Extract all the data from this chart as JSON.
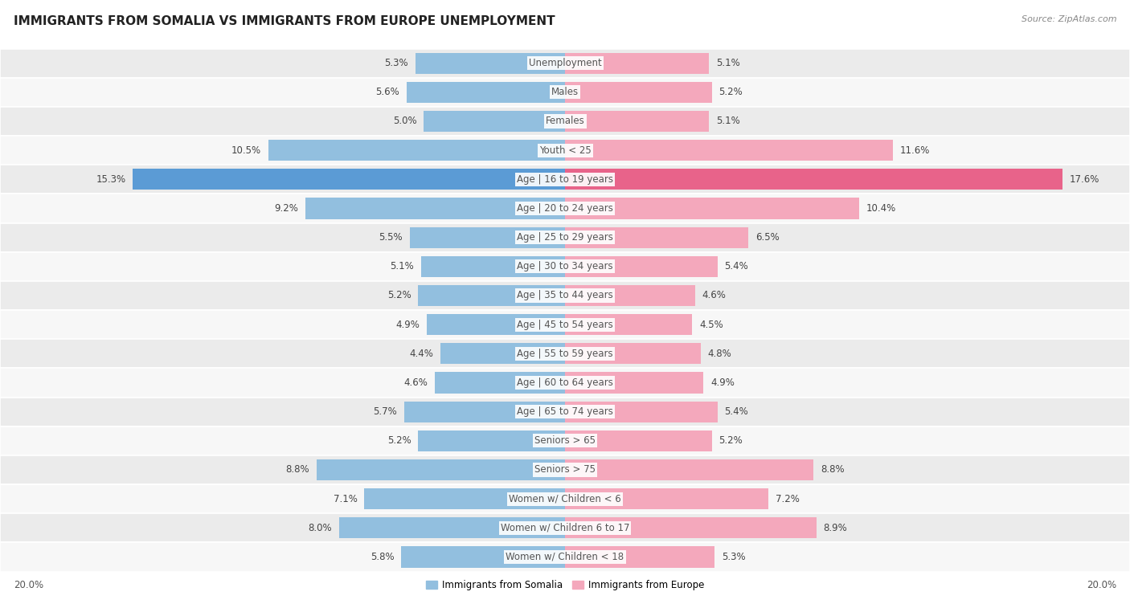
{
  "title": "IMMIGRANTS FROM SOMALIA VS IMMIGRANTS FROM EUROPE UNEMPLOYMENT",
  "source": "Source: ZipAtlas.com",
  "categories": [
    "Unemployment",
    "Males",
    "Females",
    "Youth < 25",
    "Age | 16 to 19 years",
    "Age | 20 to 24 years",
    "Age | 25 to 29 years",
    "Age | 30 to 34 years",
    "Age | 35 to 44 years",
    "Age | 45 to 54 years",
    "Age | 55 to 59 years",
    "Age | 60 to 64 years",
    "Age | 65 to 74 years",
    "Seniors > 65",
    "Seniors > 75",
    "Women w/ Children < 6",
    "Women w/ Children 6 to 17",
    "Women w/ Children < 18"
  ],
  "somalia_values": [
    5.3,
    5.6,
    5.0,
    10.5,
    15.3,
    9.2,
    5.5,
    5.1,
    5.2,
    4.9,
    4.4,
    4.6,
    5.7,
    5.2,
    8.8,
    7.1,
    8.0,
    5.8
  ],
  "europe_values": [
    5.1,
    5.2,
    5.1,
    11.6,
    17.6,
    10.4,
    6.5,
    5.4,
    4.6,
    4.5,
    4.8,
    4.9,
    5.4,
    5.2,
    8.8,
    7.2,
    8.9,
    5.3
  ],
  "somalia_color": "#92bfdf",
  "europe_color": "#f4a8bc",
  "axis_limit": 20.0,
  "bar_height": 0.72,
  "row_colors": [
    "#ebebeb",
    "#f7f7f7"
  ],
  "highlight_row": 4,
  "highlight_color_somalia": "#5b9bd5",
  "highlight_color_europe": "#e8638a",
  "label_fontsize": 8.5,
  "cat_fontsize": 8.5,
  "title_fontsize": 11,
  "source_fontsize": 8
}
